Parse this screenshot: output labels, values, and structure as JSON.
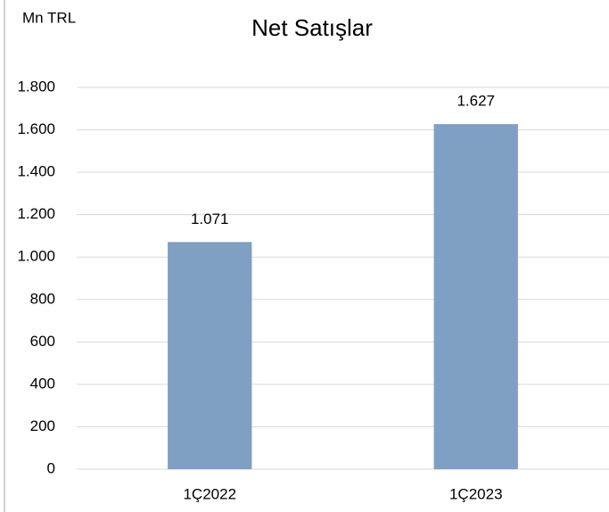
{
  "chart_data": {
    "type": "bar",
    "title": "Net Satışlar",
    "y_label": "Mn TRL",
    "categories": [
      "1Ç2022",
      "1Ç2023"
    ],
    "values": [
      1071,
      1627
    ],
    "value_labels": [
      "1.071",
      "1.627"
    ],
    "color": "#7f9fc3",
    "ylim": [
      0,
      1800
    ],
    "yticks": [
      0,
      200,
      400,
      600,
      800,
      {
        "value": 1000,
        "label": "1.000"
      },
      {
        "value": 1200,
        "label": "1.200"
      },
      {
        "value": 1400,
        "label": "1.400"
      },
      {
        "value": 1600,
        "label": "1.600"
      },
      {
        "value": 1800,
        "label": "1.800"
      }
    ],
    "grid": true
  }
}
